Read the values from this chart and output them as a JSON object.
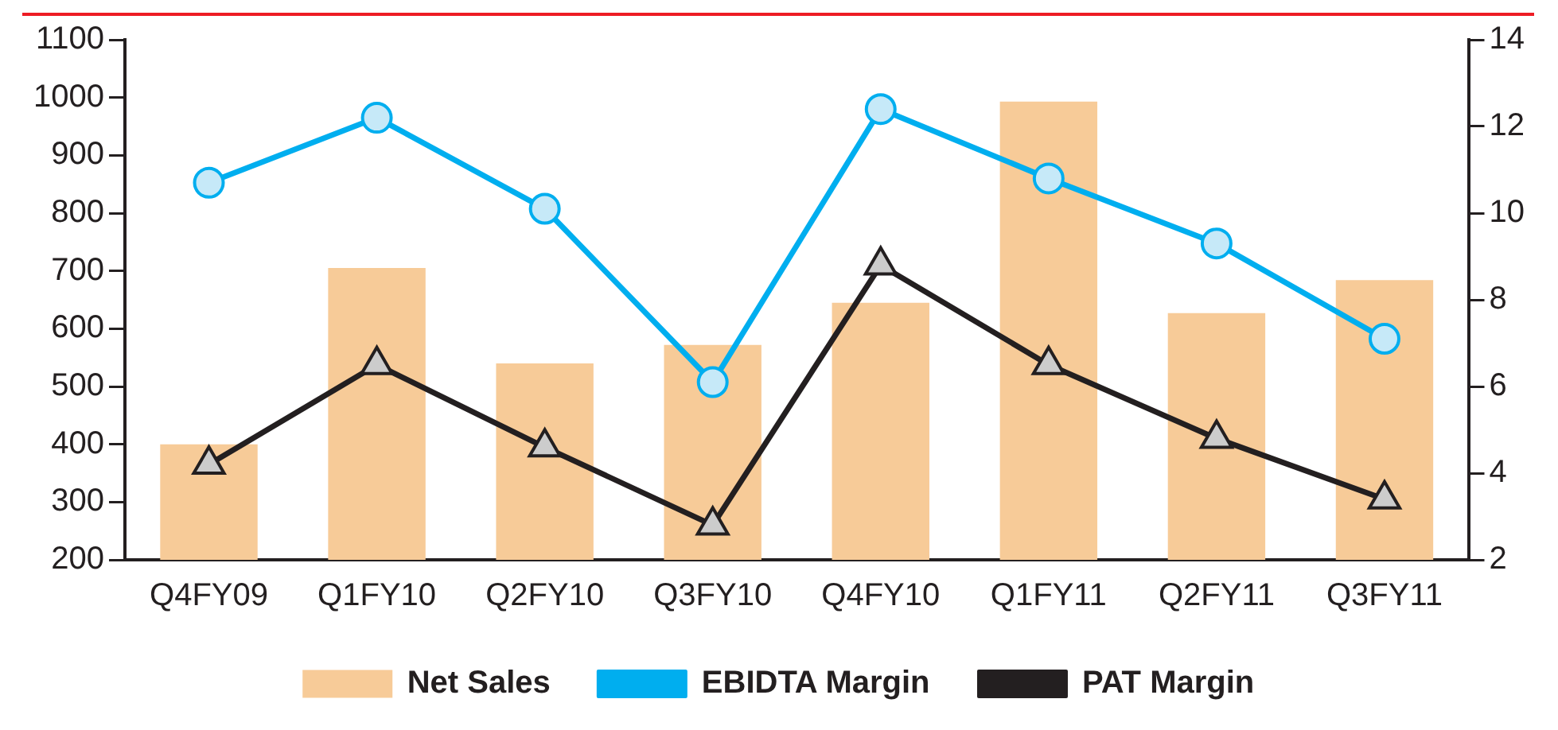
{
  "chart_data": {
    "type": "bar",
    "categories": [
      "Q4FY09",
      "Q1FY10",
      "Q2FY10",
      "Q3FY10",
      "Q4FY10",
      "Q1FY11",
      "Q2FY11",
      "Q3FY11"
    ],
    "series": [
      {
        "name": "Net Sales",
        "color": "#f7cb98",
        "values": [
          400,
          705,
          540,
          572,
          645,
          993,
          627,
          684
        ]
      },
      {
        "name": "EBIDTA Margin",
        "type": "line",
        "color": "#00aeef",
        "marker": "circle",
        "axis": "y2",
        "values": [
          10.7,
          12.2,
          10.1,
          6.1,
          12.4,
          10.8,
          9.3,
          7.1
        ]
      },
      {
        "name": "PAT Margin",
        "type": "line",
        "color": "#231f20",
        "marker": "triangle",
        "axis": "y2",
        "values": [
          4.2,
          6.5,
          4.6,
          2.8,
          8.8,
          6.5,
          4.8,
          3.4
        ]
      }
    ],
    "ylim": [
      200,
      1100
    ],
    "yticks": [
      200,
      300,
      400,
      500,
      600,
      700,
      800,
      900,
      1000,
      1100
    ],
    "y2lim": [
      2,
      14
    ],
    "y2ticks": [
      2,
      4,
      6,
      8,
      10,
      12,
      14
    ],
    "grid": false,
    "legend": "bottom"
  }
}
